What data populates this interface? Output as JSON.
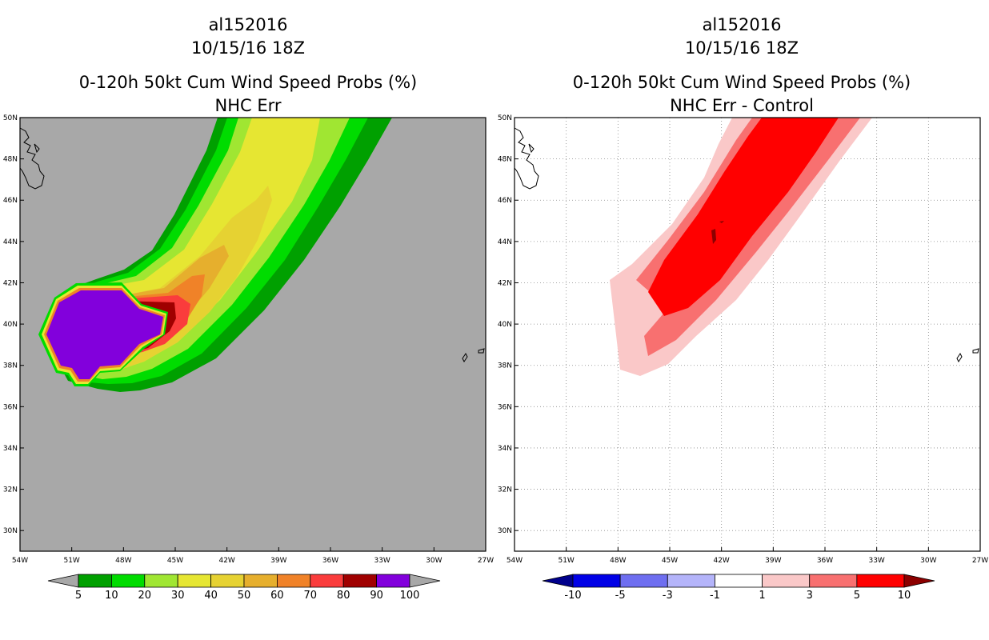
{
  "chart_data": [
    {
      "type": "heatmap",
      "storm_id": "al152016",
      "date": "10/15/16 18Z",
      "title": "0-120h 50kt Cum Wind Speed Probs (%)",
      "subtitle": "NHC Err",
      "x_ticks": [
        "54W",
        "51W",
        "48W",
        "45W",
        "42W",
        "39W",
        "36W",
        "33W",
        "30W",
        "27W"
      ],
      "y_ticks": [
        "50N",
        "48N",
        "46N",
        "44N",
        "42N",
        "40N",
        "38N",
        "36N",
        "34N",
        "32N",
        "30N"
      ],
      "xlim": [
        -54,
        -27
      ],
      "ylim": [
        29,
        50
      ],
      "background_color": "#a8a8a8",
      "colorbar": {
        "labels": [
          "5",
          "10",
          "20",
          "30",
          "40",
          "50",
          "60",
          "70",
          "80",
          "90",
          "100"
        ],
        "colors": [
          "#00a000",
          "#00dc00",
          "#a0e632",
          "#e6e632",
          "#e6d232",
          "#e6af2d",
          "#f08228",
          "#fa3c3c",
          "#a00000",
          "#8200dc"
        ],
        "end_left": "#a8a8a8",
        "end_right": "#a8a8a8"
      }
    },
    {
      "type": "heatmap",
      "storm_id": "al152016",
      "date": "10/15/16 18Z",
      "title": "0-120h 50kt Cum Wind Speed Probs (%)",
      "subtitle": "NHC Err - Control",
      "x_ticks": [
        "54W",
        "51W",
        "48W",
        "45W",
        "42W",
        "39W",
        "36W",
        "33W",
        "30W",
        "27W"
      ],
      "y_ticks": [
        "50N",
        "48N",
        "46N",
        "44N",
        "42N",
        "40N",
        "38N",
        "36N",
        "34N",
        "32N",
        "30N"
      ],
      "xlim": [
        -54,
        -27
      ],
      "ylim": [
        29,
        50
      ],
      "background_color": "#ffffff",
      "colorbar": {
        "labels": [
          "-10",
          "-5",
          "-3",
          "-1",
          "1",
          "3",
          "5",
          "10"
        ],
        "colors": [
          "#0000e6",
          "#6e6ef0",
          "#b4b4fa",
          "#ffffff",
          "#fac8c8",
          "#f87070",
          "#ff0000"
        ],
        "end_left": "#00008c",
        "end_right": "#8c0000"
      }
    }
  ]
}
